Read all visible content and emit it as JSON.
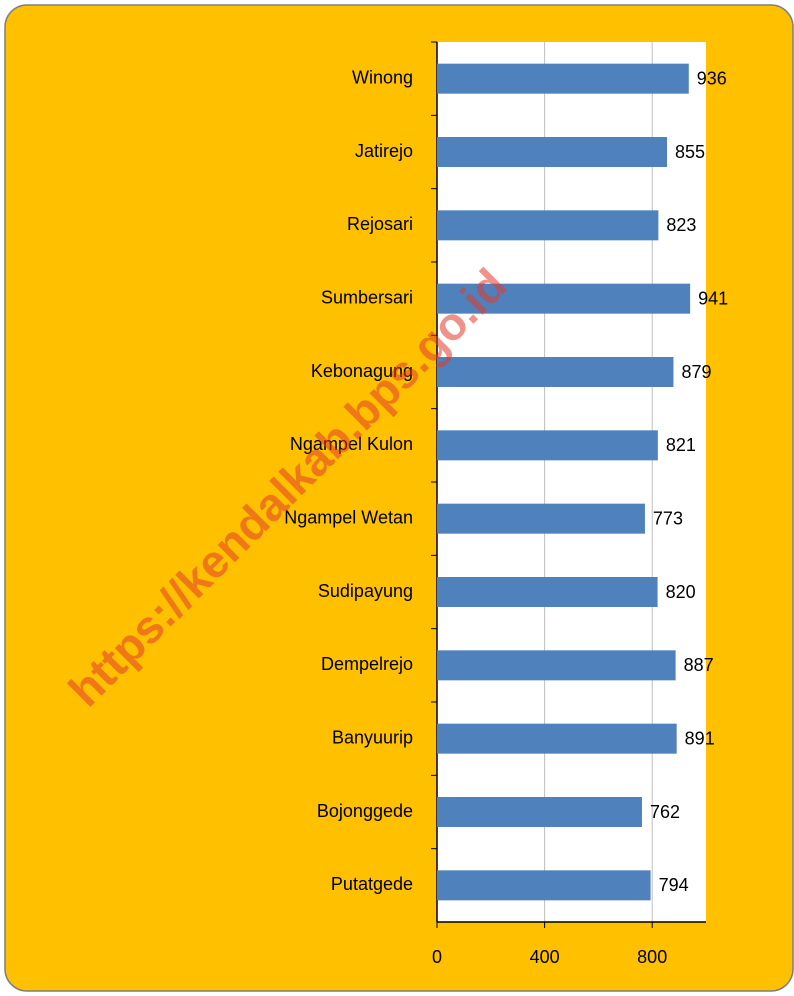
{
  "chart_data": {
    "type": "bar",
    "orientation": "horizontal",
    "categories": [
      "Winong",
      "Jatirejo",
      "Rejosari",
      "Sumbersari",
      "Kebonagung",
      "Ngampel Kulon",
      "Ngampel Wetan",
      "Sudipayung",
      "Dempelrejo",
      "Banyuurip",
      "Bojonggede",
      "Putatgede"
    ],
    "values": [
      936,
      855,
      823,
      941,
      879,
      821,
      773,
      820,
      887,
      891,
      762,
      794
    ],
    "color": "#4f81bd",
    "xlim": [
      0,
      1000
    ],
    "xticks": [
      0,
      400,
      800
    ],
    "grid": true,
    "watermark": "https://kendalkab.bps.go.id"
  }
}
